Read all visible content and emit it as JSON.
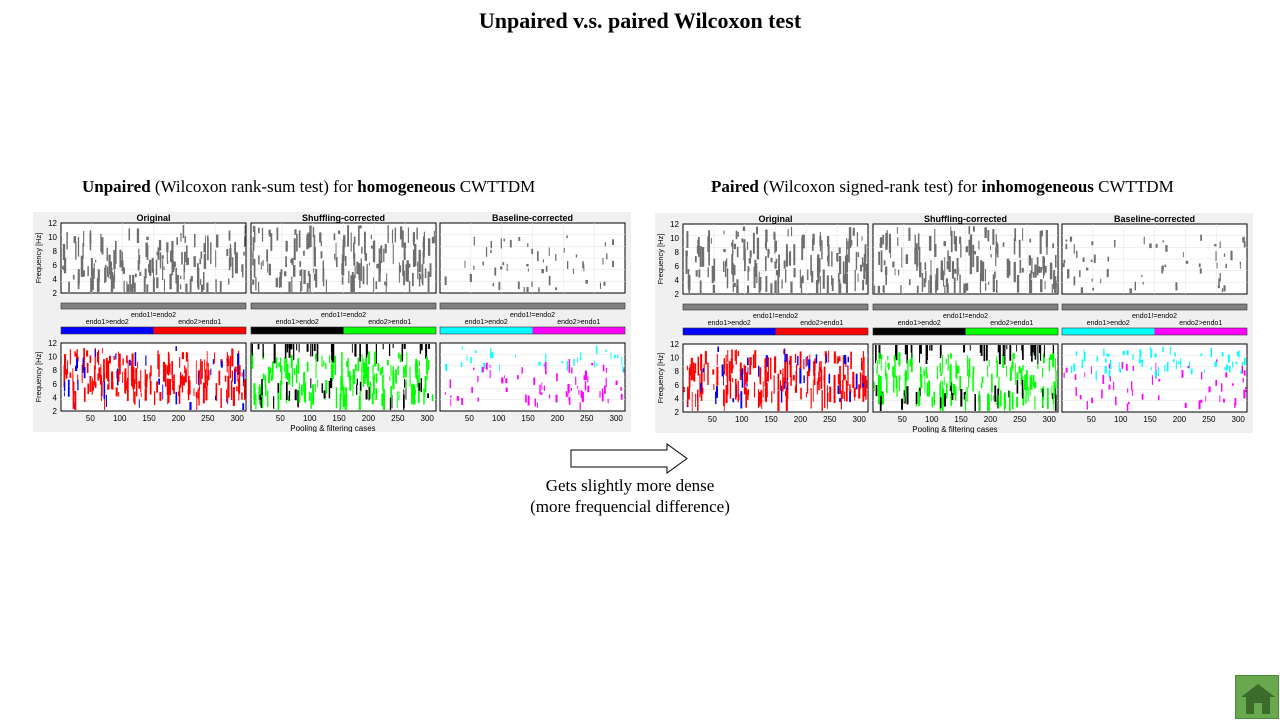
{
  "slide": {
    "title": "Unpaired v.s. paired Wilcoxon test"
  },
  "left_caption": {
    "bold1": "Unpaired",
    "text1": " (Wilcoxon rank-sum test) for ",
    "bold2": "homogeneous",
    "text2": "  CWTTDM"
  },
  "right_caption": {
    "bold1": "Paired",
    "text1": " (Wilcoxon signed-rank test) for ",
    "bold2": "inhomogeneous",
    "text2": "  CWTTDM"
  },
  "figure": {
    "panel_titles": [
      "Original",
      "Shuffling-corrected",
      "Baseline-corrected"
    ],
    "ylabel": "Frequency [Hz]",
    "xlabel": "Pooling & filtering cases",
    "yticks": [
      "12",
      "10",
      "8",
      "6",
      "4",
      "2"
    ],
    "xticks": [
      "50",
      "100",
      "150",
      "200",
      "250",
      "300"
    ],
    "legend_top": "endo1!=endo2",
    "legend_left": "endo1>endo2",
    "legend_right": "endo2>endo1",
    "panel_colors": [
      {
        "a": "#0000ff",
        "b": "#ff0000"
      },
      {
        "a": "#000000",
        "b": "#00ff00"
      },
      {
        "a": "#00ffff",
        "b": "#ff00ff"
      }
    ],
    "gray": "#808080"
  },
  "arrow_note": {
    "line1": "Gets slightly  more dense",
    "line2": "(more frequencial  difference)"
  },
  "home": {
    "icon": "home-icon",
    "color": "#6aa84f"
  }
}
